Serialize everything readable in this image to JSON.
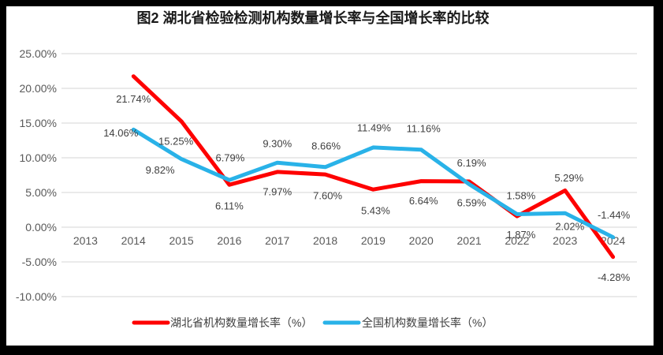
{
  "title": "图2  湖北省检验检测机构数量增长率与全国增长率的比较",
  "colors": {
    "frame": "#000000",
    "chart_background": "#ffffff",
    "gridline": "#dddddd",
    "axis_text": "#595959",
    "data_label_text": "#404040",
    "title_text": "#1a1a1a",
    "hubei_red": "#fe0000",
    "national_blue": "#29b2e8"
  },
  "chart_data": {
    "type": "line",
    "title": "图2  湖北省检验检测机构数量增长率与全国增长率的比较",
    "categories": [
      "2013",
      "2014",
      "2015",
      "2016",
      "2017",
      "2018",
      "2019",
      "2020",
      "2021",
      "2022",
      "2023",
      "2024"
    ],
    "series": [
      {
        "name": "湖北省机构数量增长率（%）",
        "color": "#fe0000",
        "values": [
          null,
          21.74,
          15.25,
          6.11,
          7.97,
          7.6,
          5.43,
          6.64,
          6.59,
          1.58,
          5.29,
          -4.28
        ],
        "labels": [
          null,
          "21.74%",
          "15.25%",
          "6.11%",
          "7.97%",
          "7.60%",
          "5.43%",
          "6.64%",
          "6.59%",
          "1.58%",
          "5.29%",
          "-4.28%"
        ],
        "label_offsets": [
          null,
          [
            0,
            29
          ],
          [
            -7,
            25
          ],
          [
            0,
            27
          ],
          [
            0,
            25
          ],
          [
            3,
            27
          ],
          [
            3,
            27
          ],
          [
            3,
            25
          ],
          [
            3,
            27
          ],
          [
            5,
            -26
          ],
          [
            5,
            -16
          ],
          [
            1,
            26
          ]
        ]
      },
      {
        "name": "全国机构数量增长率（%）",
        "color": "#29b2e8",
        "values": [
          null,
          14.06,
          9.82,
          6.79,
          9.3,
          8.66,
          11.49,
          11.16,
          6.19,
          1.87,
          2.02,
          -1.44
        ],
        "labels": [
          null,
          "14.06%",
          "9.82%",
          "6.79%",
          "9.30%",
          "8.66%",
          "11.49%",
          "11.16%",
          "6.19%",
          "1.87%",
          "2.02%",
          "-1.44%"
        ],
        "label_offsets": [
          null,
          [
            -16,
            4
          ],
          [
            -27,
            14
          ],
          [
            1,
            -28
          ],
          [
            0,
            -24
          ],
          [
            1,
            -27
          ],
          [
            1,
            -25
          ],
          [
            3,
            -27
          ],
          [
            3,
            -27
          ],
          [
            5,
            26
          ],
          [
            6,
            17
          ],
          [
            1,
            -28
          ]
        ]
      }
    ],
    "y_ticks": [
      {
        "value": 25,
        "label": "25.00%"
      },
      {
        "value": 20,
        "label": "20.00%"
      },
      {
        "value": 15,
        "label": "15.00%"
      },
      {
        "value": 10,
        "label": "10.00%"
      },
      {
        "value": 5,
        "label": "5.00%"
      },
      {
        "value": 0,
        "label": "0.00%"
      },
      {
        "value": -5,
        "label": "-5.00%"
      },
      {
        "value": -10,
        "label": "-10.00%"
      }
    ],
    "ylim": [
      -10,
      25
    ],
    "grid": true,
    "legend_position": "bottom"
  }
}
